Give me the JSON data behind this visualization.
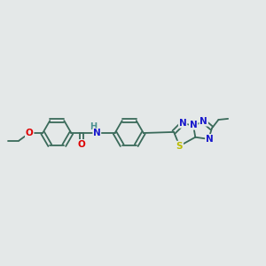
{
  "bg_color": "#e4e8e8",
  "bond_color": "#3a6a5a",
  "bond_width": 1.3,
  "atom_colors": {
    "O": "#dd0000",
    "N": "#1818cc",
    "S": "#bbbb00",
    "H": "#4a9090",
    "C": "#3a6a5a"
  },
  "font_size": 7.5,
  "xlim": [
    0,
    14
  ],
  "ylim": [
    0,
    10
  ]
}
